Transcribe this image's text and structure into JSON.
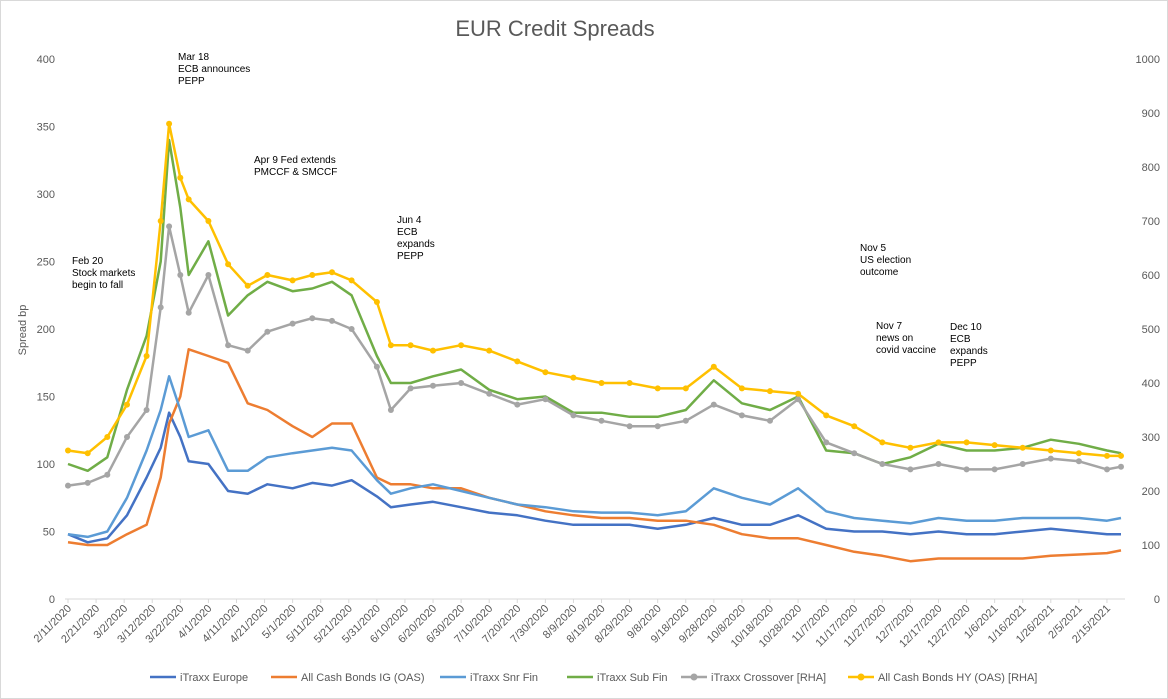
{
  "chart_data": {
    "type": "line",
    "title": "EUR Credit Spreads",
    "ylabel": "Spread bp",
    "ylim": [
      0,
      400
    ],
    "y2lim": [
      0,
      1000
    ],
    "yticks": [
      0,
      50,
      100,
      150,
      200,
      250,
      300,
      350,
      400
    ],
    "y2ticks": [
      0,
      100,
      200,
      300,
      400,
      500,
      600,
      700,
      800,
      900,
      1000
    ],
    "x_tick_labels": [
      "2/11/2020",
      "2/21/2020",
      "3/2/2020",
      "3/12/2020",
      "3/22/2020",
      "4/1/2020",
      "4/11/2020",
      "4/21/2020",
      "5/1/2020",
      "5/11/2020",
      "5/21/2020",
      "5/31/2020",
      "6/10/2020",
      "6/20/2020",
      "6/30/2020",
      "7/10/2020",
      "7/20/2020",
      "7/30/2020",
      "8/9/2020",
      "8/19/2020",
      "8/29/2020",
      "9/8/2020",
      "9/18/2020",
      "9/28/2020",
      "10/8/2020",
      "10/18/2020",
      "10/28/2020",
      "11/7/2020",
      "11/17/2020",
      "11/27/2020",
      "12/7/2020",
      "12/17/2020",
      "12/27/2020",
      "1/6/2021",
      "1/16/2021",
      "1/26/2021",
      "2/5/2021",
      "2/15/2021"
    ],
    "grid": false,
    "legend_position": "bottom",
    "x": [
      "2/11/2020",
      "2/18/2020",
      "2/25/2020",
      "3/3/2020",
      "3/10/2020",
      "3/15/2020",
      "3/18/2020",
      "3/22/2020",
      "3/25/2020",
      "4/1/2020",
      "4/8/2020",
      "4/15/2020",
      "4/22/2020",
      "5/1/2020",
      "5/8/2020",
      "5/15/2020",
      "5/22/2020",
      "5/31/2020",
      "6/5/2020",
      "6/12/2020",
      "6/20/2020",
      "6/30/2020",
      "7/10/2020",
      "7/20/2020",
      "7/30/2020",
      "8/9/2020",
      "8/19/2020",
      "8/29/2020",
      "9/8/2020",
      "9/18/2020",
      "9/28/2020",
      "10/8/2020",
      "10/18/2020",
      "10/28/2020",
      "11/7/2020",
      "11/17/2020",
      "11/27/2020",
      "12/7/2020",
      "12/17/2020",
      "12/27/2020",
      "1/6/2021",
      "1/16/2021",
      "1/26/2021",
      "2/5/2021",
      "2/15/2021",
      "2/20/2021"
    ],
    "series": [
      {
        "name": "iTraxx Europe",
        "axis": "left",
        "color": "#4472C4",
        "values": [
          48,
          42,
          45,
          62,
          90,
          112,
          138,
          120,
          102,
          100,
          80,
          78,
          85,
          82,
          86,
          84,
          88,
          76,
          68,
          70,
          72,
          68,
          64,
          62,
          58,
          55,
          55,
          55,
          52,
          55,
          60,
          55,
          55,
          62,
          52,
          50,
          50,
          48,
          50,
          48,
          48,
          50,
          52,
          50,
          48,
          48
        ]
      },
      {
        "name": "All Cash Bonds IG (OAS)",
        "axis": "left",
        "color": "#ED7D31",
        "values": [
          42,
          40,
          40,
          48,
          55,
          90,
          130,
          150,
          185,
          180,
          175,
          145,
          140,
          128,
          120,
          130,
          130,
          90,
          85,
          85,
          82,
          82,
          75,
          70,
          65,
          62,
          60,
          60,
          58,
          58,
          55,
          48,
          45,
          45,
          40,
          35,
          32,
          28,
          30,
          30,
          30,
          30,
          32,
          33,
          34,
          36
        ]
      },
      {
        "name": "iTraxx Snr Fin",
        "axis": "left",
        "color": "#5B9BD5",
        "values": [
          48,
          46,
          50,
          75,
          110,
          140,
          165,
          140,
          120,
          125,
          95,
          95,
          105,
          108,
          110,
          112,
          110,
          88,
          78,
          82,
          85,
          80,
          75,
          70,
          68,
          65,
          64,
          64,
          62,
          65,
          82,
          75,
          70,
          82,
          65,
          60,
          58,
          56,
          60,
          58,
          58,
          60,
          60,
          60,
          58,
          60
        ]
      },
      {
        "name": "iTraxx Sub Fin",
        "axis": "left",
        "color": "#70AD47",
        "values": [
          100,
          95,
          105,
          155,
          195,
          250,
          340,
          290,
          240,
          265,
          210,
          225,
          235,
          228,
          230,
          235,
          225,
          180,
          160,
          160,
          165,
          170,
          155,
          148,
          150,
          138,
          138,
          135,
          135,
          140,
          162,
          145,
          140,
          150,
          110,
          108,
          100,
          105,
          115,
          110,
          110,
          112,
          118,
          115,
          110,
          108
        ]
      },
      {
        "name": "iTraxx Crossover [RHA]",
        "axis": "right",
        "color": "#A5A5A5",
        "values": [
          210,
          215,
          230,
          300,
          350,
          540,
          690,
          600,
          530,
          600,
          470,
          460,
          495,
          510,
          520,
          515,
          500,
          430,
          350,
          390,
          395,
          400,
          380,
          360,
          370,
          340,
          330,
          320,
          320,
          330,
          360,
          340,
          330,
          370,
          290,
          270,
          250,
          240,
          250,
          240,
          240,
          250,
          260,
          255,
          240,
          245
        ]
      },
      {
        "name": "All Cash Bonds HY (OAS) [RHA]",
        "axis": "right",
        "color": "#FFC000",
        "values": [
          275,
          270,
          300,
          360,
          450,
          700,
          880,
          780,
          740,
          700,
          620,
          580,
          600,
          590,
          600,
          605,
          590,
          550,
          470,
          470,
          460,
          470,
          460,
          440,
          420,
          410,
          400,
          400,
          390,
          390,
          430,
          390,
          385,
          380,
          340,
          320,
          290,
          280,
          290,
          290,
          285,
          280,
          275,
          270,
          265,
          265
        ]
      }
    ],
    "annotations": [
      {
        "date": "2/20/2020",
        "text": [
          "Feb 20",
          "Stock markets",
          "begin to fall"
        ]
      },
      {
        "date": "3/18/2020",
        "text": [
          "Mar 18",
          "ECB announces",
          "PEPP"
        ]
      },
      {
        "date": "4/9/2020",
        "text": [
          "Apr 9 Fed extends",
          "PMCCF & SMCCF"
        ]
      },
      {
        "date": "6/4/2020",
        "text": [
          "Jun 4",
          "ECB",
          "expands",
          "PEPP"
        ]
      },
      {
        "date": "11/5/2020",
        "text": [
          "Nov 5",
          "US election",
          "outcome"
        ]
      },
      {
        "date": "11/7/2020",
        "text": [
          "Nov 7",
          "news on",
          "covid vaccine"
        ]
      },
      {
        "date": "12/10/2020",
        "text": [
          "Dec 10",
          "ECB",
          "expands",
          "PEPP"
        ]
      }
    ]
  }
}
